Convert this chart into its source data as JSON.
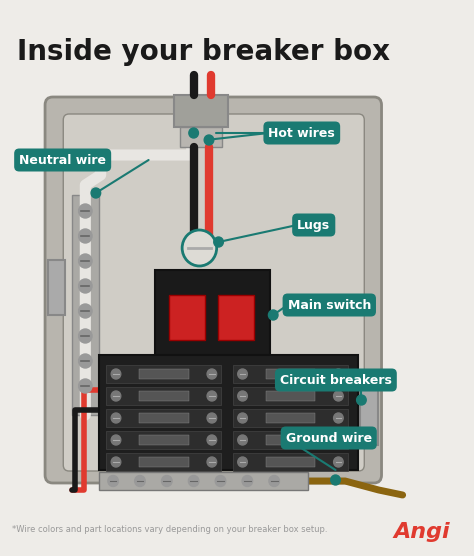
{
  "title": "Inside your breaker box",
  "bg_color": "#eeece8",
  "title_color": "#1a1a1a",
  "teal_color": "#1a7a72",
  "footnote": "*Wire colors and part locations vary depending on your breaker box setup.",
  "footnote_color": "#999999",
  "angi_color": "#e03a2f",
  "angi_text": "Angi",
  "box_outer_color": "#b8b5ae",
  "box_outer_edge": "#8a8880",
  "box_inner_color": "#d0cdc6",
  "panel_bg": "#c8c5be",
  "neutral_bar_color": "#aaa9a5",
  "screw_color": "#888",
  "breaker_bg": "#1e1e1e",
  "breaker_row_color": "#2a2a2a",
  "breaker_toggle_color": "#666",
  "red_wire": "#e03a2f",
  "black_wire": "#1a1a1a",
  "white_wire": "#e8e6e2",
  "brown_wire": "#8B6510",
  "conduit_color": "#a0a09a",
  "lug_color": "#dddbd5",
  "main_sw_red": "#cc2222",
  "teal_dot": "#1a7a72",
  "label_fs": 9,
  "title_fs": 20
}
